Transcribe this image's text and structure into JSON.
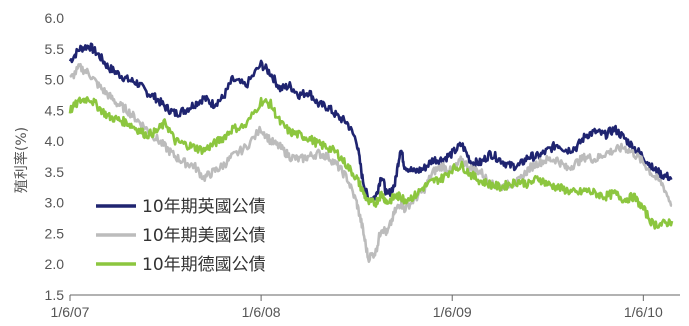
{
  "chart_data": {
    "type": "line",
    "title": "",
    "xlabel": "",
    "ylabel": "殖利率(%)",
    "ylim": [
      1.5,
      6.0
    ],
    "yticks": [
      "1.5",
      "2.0",
      "2.5",
      "3.0",
      "3.5",
      "4.0",
      "4.5",
      "5.0",
      "5.5",
      "6.0"
    ],
    "x_ticks": [
      "1/6/07",
      "1/6/08",
      "1/6/09",
      "1/6/10"
    ],
    "grid": false,
    "legend_position": "bottom-left",
    "series": [
      {
        "name": "10年期英國公債",
        "color": "#1f2470",
        "points": [
          [
            0,
            5.3
          ],
          [
            0.05,
            5.5
          ],
          [
            0.1,
            5.55
          ],
          [
            0.15,
            5.4
          ],
          [
            0.2,
            5.2
          ],
          [
            0.25,
            5.1
          ],
          [
            0.3,
            5.0
          ],
          [
            0.35,
            4.95
          ],
          [
            0.4,
            4.8
          ],
          [
            0.45,
            4.7
          ],
          [
            0.5,
            4.55
          ],
          [
            0.55,
            4.45
          ],
          [
            0.6,
            4.5
          ],
          [
            0.65,
            4.6
          ],
          [
            0.7,
            4.7
          ],
          [
            0.75,
            4.6
          ],
          [
            0.8,
            4.7
          ],
          [
            0.85,
            5.0
          ],
          [
            0.92,
            4.9
          ],
          [
            1.0,
            5.25
          ],
          [
            1.05,
            5.1
          ],
          [
            1.1,
            4.85
          ],
          [
            1.15,
            4.9
          ],
          [
            1.2,
            4.75
          ],
          [
            1.25,
            4.8
          ],
          [
            1.3,
            4.6
          ],
          [
            1.35,
            4.55
          ],
          [
            1.4,
            4.4
          ],
          [
            1.45,
            4.3
          ],
          [
            1.5,
            4.0
          ],
          [
            1.53,
            3.4
          ],
          [
            1.56,
            3.05
          ],
          [
            1.6,
            3.1
          ],
          [
            1.63,
            3.45
          ],
          [
            1.66,
            3.1
          ],
          [
            1.7,
            3.3
          ],
          [
            1.73,
            3.9
          ],
          [
            1.75,
            3.6
          ],
          [
            1.8,
            3.5
          ],
          [
            1.85,
            3.55
          ],
          [
            1.9,
            3.7
          ],
          [
            1.95,
            3.7
          ],
          [
            2.0,
            3.8
          ],
          [
            2.05,
            3.95
          ],
          [
            2.1,
            3.65
          ],
          [
            2.15,
            3.65
          ],
          [
            2.2,
            3.8
          ],
          [
            2.25,
            3.7
          ],
          [
            2.3,
            3.6
          ],
          [
            2.35,
            3.6
          ],
          [
            2.4,
            3.75
          ],
          [
            2.45,
            3.75
          ],
          [
            2.5,
            3.85
          ],
          [
            2.55,
            3.95
          ],
          [
            2.6,
            3.85
          ],
          [
            2.65,
            3.9
          ],
          [
            2.7,
            4.1
          ],
          [
            2.75,
            4.15
          ],
          [
            2.8,
            4.1
          ],
          [
            2.85,
            4.2
          ],
          [
            2.9,
            4.05
          ],
          [
            2.95,
            3.9
          ],
          [
            3.0,
            3.75
          ],
          [
            3.05,
            3.55
          ],
          [
            3.1,
            3.45
          ],
          [
            3.15,
            3.4
          ]
        ]
      },
      {
        "name": "10年期美國公債",
        "color": "#bcbcbc",
        "points": [
          [
            0,
            5.0
          ],
          [
            0.05,
            5.2
          ],
          [
            0.1,
            5.1
          ],
          [
            0.15,
            4.9
          ],
          [
            0.2,
            4.75
          ],
          [
            0.25,
            4.6
          ],
          [
            0.3,
            4.5
          ],
          [
            0.35,
            4.35
          ],
          [
            0.4,
            4.2
          ],
          [
            0.45,
            4.05
          ],
          [
            0.5,
            3.9
          ],
          [
            0.55,
            3.75
          ],
          [
            0.6,
            3.65
          ],
          [
            0.65,
            3.6
          ],
          [
            0.7,
            3.4
          ],
          [
            0.75,
            3.5
          ],
          [
            0.8,
            3.6
          ],
          [
            0.85,
            3.75
          ],
          [
            0.92,
            3.9
          ],
          [
            1.0,
            4.2
          ],
          [
            1.05,
            4.0
          ],
          [
            1.1,
            3.9
          ],
          [
            1.15,
            3.75
          ],
          [
            1.2,
            3.7
          ],
          [
            1.25,
            3.75
          ],
          [
            1.3,
            3.8
          ],
          [
            1.35,
            3.75
          ],
          [
            1.4,
            3.6
          ],
          [
            1.45,
            3.4
          ],
          [
            1.5,
            3.0
          ],
          [
            1.53,
            2.6
          ],
          [
            1.56,
            2.1
          ],
          [
            1.6,
            2.2
          ],
          [
            1.63,
            2.6
          ],
          [
            1.66,
            2.5
          ],
          [
            1.7,
            2.85
          ],
          [
            1.73,
            3.0
          ],
          [
            1.75,
            2.9
          ],
          [
            1.8,
            3.05
          ],
          [
            1.85,
            3.2
          ],
          [
            1.9,
            3.5
          ],
          [
            1.95,
            3.6
          ],
          [
            2.0,
            3.5
          ],
          [
            2.05,
            3.7
          ],
          [
            2.1,
            3.55
          ],
          [
            2.15,
            3.5
          ],
          [
            2.2,
            3.3
          ],
          [
            2.25,
            3.25
          ],
          [
            2.3,
            3.3
          ],
          [
            2.35,
            3.35
          ],
          [
            2.4,
            3.55
          ],
          [
            2.45,
            3.65
          ],
          [
            2.5,
            3.7
          ],
          [
            2.55,
            3.7
          ],
          [
            2.6,
            3.55
          ],
          [
            2.65,
            3.65
          ],
          [
            2.7,
            3.75
          ],
          [
            2.75,
            3.7
          ],
          [
            2.8,
            3.8
          ],
          [
            2.85,
            3.85
          ],
          [
            2.9,
            3.9
          ],
          [
            2.95,
            3.8
          ],
          [
            3.0,
            3.65
          ],
          [
            3.05,
            3.45
          ],
          [
            3.1,
            3.3
          ],
          [
            3.15,
            2.95
          ]
        ]
      },
      {
        "name": "10年期德國公債",
        "color": "#8cc63f",
        "points": [
          [
            0,
            4.5
          ],
          [
            0.05,
            4.65
          ],
          [
            0.1,
            4.7
          ],
          [
            0.15,
            4.55
          ],
          [
            0.2,
            4.4
          ],
          [
            0.25,
            4.35
          ],
          [
            0.3,
            4.3
          ],
          [
            0.35,
            4.2
          ],
          [
            0.4,
            4.1
          ],
          [
            0.45,
            4.15
          ],
          [
            0.5,
            4.3
          ],
          [
            0.55,
            4.0
          ],
          [
            0.6,
            3.95
          ],
          [
            0.65,
            3.9
          ],
          [
            0.7,
            3.85
          ],
          [
            0.75,
            3.95
          ],
          [
            0.8,
            4.05
          ],
          [
            0.85,
            4.2
          ],
          [
            0.92,
            4.25
          ],
          [
            1.0,
            4.65
          ],
          [
            1.05,
            4.6
          ],
          [
            1.1,
            4.3
          ],
          [
            1.15,
            4.15
          ],
          [
            1.2,
            4.1
          ],
          [
            1.25,
            4.05
          ],
          [
            1.3,
            3.95
          ],
          [
            1.35,
            3.9
          ],
          [
            1.4,
            3.8
          ],
          [
            1.45,
            3.6
          ],
          [
            1.5,
            3.4
          ],
          [
            1.53,
            3.2
          ],
          [
            1.56,
            3.0
          ],
          [
            1.6,
            3.0
          ],
          [
            1.63,
            3.15
          ],
          [
            1.66,
            3.0
          ],
          [
            1.7,
            3.1
          ],
          [
            1.73,
            3.1
          ],
          [
            1.75,
            3.05
          ],
          [
            1.8,
            3.1
          ],
          [
            1.85,
            3.25
          ],
          [
            1.9,
            3.35
          ],
          [
            1.95,
            3.4
          ],
          [
            2.0,
            3.55
          ],
          [
            2.05,
            3.6
          ],
          [
            2.1,
            3.45
          ],
          [
            2.15,
            3.35
          ],
          [
            2.2,
            3.3
          ],
          [
            2.25,
            3.25
          ],
          [
            2.3,
            3.3
          ],
          [
            2.35,
            3.35
          ],
          [
            2.4,
            3.3
          ],
          [
            2.45,
            3.4
          ],
          [
            2.5,
            3.3
          ],
          [
            2.55,
            3.25
          ],
          [
            2.6,
            3.2
          ],
          [
            2.65,
            3.15
          ],
          [
            2.7,
            3.2
          ],
          [
            2.75,
            3.15
          ],
          [
            2.8,
            3.1
          ],
          [
            2.85,
            3.15
          ],
          [
            2.9,
            3.05
          ],
          [
            2.95,
            3.1
          ],
          [
            3.0,
            2.9
          ],
          [
            3.05,
            2.65
          ],
          [
            3.1,
            2.65
          ],
          [
            3.15,
            2.7
          ]
        ]
      }
    ]
  }
}
